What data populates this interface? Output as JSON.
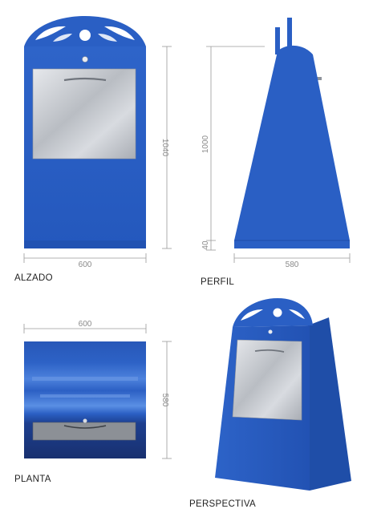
{
  "colors": {
    "body_blue": "#2a5fc4",
    "body_blue_dark": "#1f4ea8",
    "steel": "#c9ccd1",
    "dimension_line": "#9a9a9a"
  },
  "views": {
    "alzado": {
      "label": "ALZADO",
      "width_dim": "600",
      "height_dim": "1040"
    },
    "perfil": {
      "label": "PERFIL",
      "height_dim": "1000",
      "base_dim": "40",
      "width_dim": "580"
    },
    "planta": {
      "label": "PLANTA",
      "width_dim": "600",
      "depth_dim": "580"
    },
    "perspectiva": {
      "label": "PERSPECTIVA"
    }
  }
}
